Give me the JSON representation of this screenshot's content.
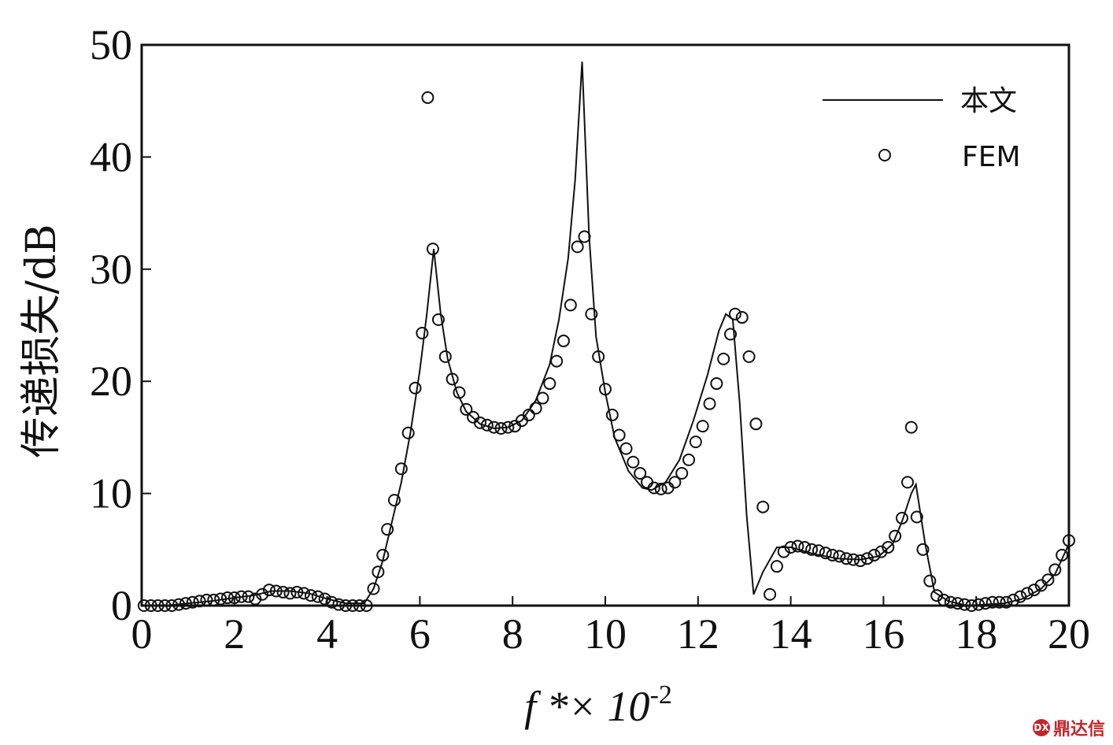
{
  "chart_data": {
    "type": "line",
    "xlabel": {
      "main": "f *× 10",
      "sup": "-2"
    },
    "ylabel": "传递损失/dB",
    "xlim": [
      0,
      20
    ],
    "ylim": [
      0,
      50
    ],
    "x_ticks": [
      0,
      2,
      4,
      6,
      8,
      10,
      12,
      14,
      16,
      18,
      20
    ],
    "y_ticks": [
      0,
      10,
      20,
      30,
      40,
      50
    ],
    "grid": false,
    "legend": {
      "position": "top-right",
      "line_label": "本文",
      "marker_label": "FEM"
    },
    "series": [
      {
        "name": "本文",
        "style": "line",
        "color": "#111111",
        "x": [
          0,
          0.5,
          1,
          1.5,
          2,
          2.4,
          2.8,
          3.2,
          3.6,
          4.0,
          4.4,
          4.8,
          5.0,
          5.2,
          5.4,
          5.6,
          5.8,
          6.0,
          6.15,
          6.3,
          6.45,
          6.6,
          6.8,
          7.0,
          7.3,
          7.6,
          7.9,
          8.2,
          8.5,
          8.8,
          9.0,
          9.2,
          9.35,
          9.5,
          9.65,
          9.8,
          10.0,
          10.2,
          10.5,
          10.8,
          11.0,
          11.3,
          11.6,
          11.9,
          12.2,
          12.45,
          12.6,
          12.75,
          12.9,
          13.05,
          13.2,
          13.4,
          13.7,
          14.0,
          14.5,
          15.0,
          15.5,
          15.9,
          16.2,
          16.4,
          16.6,
          16.7,
          16.9,
          17.1,
          17.4,
          17.8,
          18.2,
          18.6,
          19.0,
          19.4,
          19.7,
          20.0
        ],
        "y": [
          0,
          0,
          0.2,
          0.4,
          0.7,
          0.9,
          1.3,
          1.3,
          1.1,
          0.6,
          0.2,
          0.2,
          1.5,
          4,
          7.5,
          11,
          15.5,
          21,
          26,
          31.8,
          26,
          22,
          19,
          17.3,
          16.2,
          15.8,
          15.9,
          16.5,
          18.3,
          21.5,
          25.5,
          31,
          38,
          48.5,
          33,
          24,
          19,
          15,
          12,
          10.5,
          10.3,
          11,
          13,
          16.5,
          20.5,
          24.5,
          26,
          25.5,
          18,
          8,
          1,
          3,
          5.2,
          5.2,
          4.6,
          4.2,
          4.1,
          4.4,
          5.5,
          7.5,
          10,
          10.8,
          5.5,
          1.2,
          0.4,
          0,
          0.1,
          0.2,
          0.6,
          1.5,
          2.8,
          5.5
        ]
      },
      {
        "name": "FEM",
        "style": "marker",
        "color": "#111111",
        "x": [
          0.05,
          0.2,
          0.35,
          0.5,
          0.65,
          0.8,
          0.95,
          1.1,
          1.25,
          1.4,
          1.55,
          1.7,
          1.85,
          2.0,
          2.15,
          2.3,
          2.45,
          2.6,
          2.75,
          2.9,
          3.05,
          3.2,
          3.35,
          3.5,
          3.65,
          3.8,
          3.95,
          4.1,
          4.25,
          4.4,
          4.55,
          4.7,
          4.85,
          5.0,
          5.1,
          5.2,
          5.3,
          5.45,
          5.6,
          5.75,
          5.9,
          6.05,
          6.17,
          6.28,
          6.4,
          6.55,
          6.7,
          6.85,
          7.0,
          7.15,
          7.3,
          7.45,
          7.6,
          7.75,
          7.9,
          8.05,
          8.2,
          8.35,
          8.5,
          8.65,
          8.8,
          8.95,
          9.1,
          9.25,
          9.4,
          9.55,
          9.7,
          9.85,
          10.0,
          10.15,
          10.3,
          10.45,
          10.6,
          10.75,
          10.9,
          11.05,
          11.2,
          11.35,
          11.5,
          11.65,
          11.8,
          11.95,
          12.1,
          12.25,
          12.4,
          12.55,
          12.7,
          12.8,
          12.95,
          13.1,
          13.25,
          13.4,
          13.55,
          13.7,
          13.85,
          14.0,
          14.15,
          14.3,
          14.45,
          14.6,
          14.75,
          14.9,
          15.05,
          15.2,
          15.35,
          15.5,
          15.65,
          15.8,
          15.95,
          16.1,
          16.25,
          16.4,
          16.52,
          16.6,
          16.72,
          16.85,
          17.0,
          17.15,
          17.3,
          17.45,
          17.6,
          17.75,
          17.9,
          18.05,
          18.2,
          18.35,
          18.5,
          18.65,
          18.8,
          18.95,
          19.1,
          19.25,
          19.4,
          19.55,
          19.7,
          19.85,
          20.0
        ],
        "y": [
          0,
          0,
          0,
          0,
          0,
          0.1,
          0.2,
          0.3,
          0.4,
          0.5,
          0.5,
          0.6,
          0.7,
          0.7,
          0.8,
          0.8,
          0.6,
          1.0,
          1.4,
          1.3,
          1.2,
          1.1,
          1.2,
          1.1,
          0.9,
          0.8,
          0.6,
          0.3,
          0.1,
          0,
          0,
          0,
          0,
          1.5,
          3,
          4.5,
          6.8,
          9.4,
          12.2,
          15.4,
          19.4,
          24.3,
          45.3,
          31.8,
          25.5,
          22.2,
          20.2,
          19.0,
          17.5,
          16.8,
          16.3,
          16.1,
          15.9,
          15.8,
          15.9,
          16.0,
          16.5,
          17.0,
          17.6,
          18.5,
          19.8,
          21.8,
          23.6,
          26.8,
          32.0,
          32.9,
          26.0,
          22.2,
          19.3,
          17.0,
          15.2,
          14.0,
          12.8,
          11.8,
          11.0,
          10.5,
          10.4,
          10.5,
          11.0,
          11.8,
          13.0,
          14.6,
          16.0,
          18.0,
          19.8,
          22.0,
          24.2,
          26.0,
          25.7,
          22.2,
          16.2,
          8.8,
          1.0,
          3.5,
          4.8,
          5.2,
          5.3,
          5.2,
          5.0,
          4.9,
          4.7,
          4.5,
          4.4,
          4.2,
          4.1,
          4.0,
          4.2,
          4.5,
          4.8,
          5.2,
          6.2,
          7.8,
          11.0,
          15.9,
          7.9,
          5.0,
          2.2,
          0.9,
          0.5,
          0.3,
          0.2,
          0.1,
          0,
          0.1,
          0.2,
          0.3,
          0.3,
          0.3,
          0.5,
          0.8,
          1.1,
          1.4,
          1.8,
          2.3,
          3.2,
          4.5,
          5.8
        ]
      }
    ]
  },
  "watermark": {
    "text": "鼎达信",
    "logo_text": "DX"
  }
}
